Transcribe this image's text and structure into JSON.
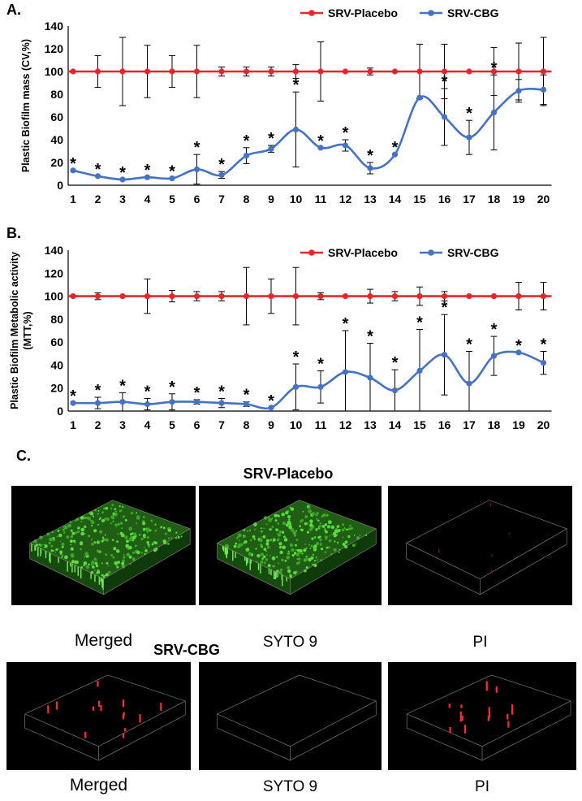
{
  "charts": {
    "A": {
      "panel_letter": "A.",
      "xlabel": "Time (days)",
      "ylabel": "Plastic Biofilm mass (CV,%)",
      "ylabel_lines": [
        "Plastic Biofilm mass (CV,%)"
      ]
    },
    "B": {
      "panel_letter": "B.",
      "xlabel": "Time (days)",
      "ylabel": "Plastic Biofilm Metabolic activity (MTT,%)",
      "ylabel_lines": [
        "Plastic Biofilm Metabolic activity",
        "(MTT,%)"
      ]
    }
  },
  "chart_data": [
    {
      "type": "line",
      "title": "",
      "xlabel": "Time (days)",
      "ylabel": "Plastic Biofilm mass (CV,%)",
      "x": [
        1,
        2,
        3,
        4,
        5,
        6,
        7,
        8,
        9,
        10,
        11,
        12,
        13,
        14,
        15,
        16,
        17,
        18,
        19,
        20
      ],
      "ylim": [
        0,
        140
      ],
      "yticks": [
        0,
        20,
        40,
        60,
        80,
        100,
        120,
        140
      ],
      "grid": false,
      "legend_position": "top",
      "series": [
        {
          "name": "SRV-Placebo",
          "color": "#e8262a",
          "values": [
            100,
            100,
            100,
            100,
            100,
            100,
            100,
            100,
            100,
            100,
            100,
            100,
            100,
            100,
            100,
            100,
            100,
            100,
            100,
            100
          ],
          "error": [
            0,
            14,
            30,
            23,
            14,
            23,
            4,
            4,
            4,
            6,
            26,
            0,
            3,
            0,
            24,
            24,
            0,
            21,
            25,
            30
          ]
        },
        {
          "name": "SRV-CBG",
          "color": "#4472c4",
          "values": [
            13,
            8,
            5,
            7,
            6,
            14,
            9,
            26,
            32,
            49,
            33,
            35,
            15,
            27,
            77,
            60,
            42,
            64,
            83,
            84
          ],
          "error": [
            0,
            0,
            0,
            0,
            0,
            13,
            3,
            7,
            3,
            33,
            0,
            5,
            5,
            0,
            0,
            25,
            15,
            33,
            10,
            13
          ]
        }
      ],
      "significance": [
        "*",
        "*",
        "*",
        "*",
        "*",
        "*",
        "*",
        "*",
        "*",
        "*",
        "*",
        "*",
        "*",
        "*",
        "",
        "*",
        "*",
        "*",
        "",
        ""
      ]
    },
    {
      "type": "line",
      "title": "",
      "xlabel": "Time (days)",
      "ylabel": "Plastic Biofilm Metabolic activity (MTT,%)",
      "x": [
        1,
        2,
        3,
        4,
        5,
        6,
        7,
        8,
        9,
        10,
        11,
        12,
        13,
        14,
        15,
        16,
        17,
        18,
        19,
        20
      ],
      "ylim": [
        0,
        140
      ],
      "yticks": [
        0,
        20,
        40,
        60,
        80,
        100,
        120,
        140
      ],
      "grid": false,
      "legend_position": "top",
      "series": [
        {
          "name": "SRV-Placebo",
          "color": "#e8262a",
          "values": [
            100,
            100,
            100,
            100,
            100,
            100,
            100,
            100,
            100,
            100,
            100,
            100,
            100,
            100,
            100,
            100,
            100,
            100,
            100,
            100
          ],
          "error": [
            0,
            3,
            0,
            15,
            5,
            4,
            4,
            25,
            15,
            25,
            3,
            0,
            6,
            4,
            8,
            4,
            0,
            0,
            12,
            12
          ]
        },
        {
          "name": "SRV-CBG",
          "color": "#4472c4",
          "values": [
            7,
            7,
            8,
            6,
            8,
            8,
            7,
            6,
            3,
            21,
            21,
            34,
            29,
            18,
            35,
            49,
            24,
            48,
            51,
            42
          ],
          "error": [
            0,
            5,
            8,
            5,
            7,
            2,
            4,
            2,
            0,
            20,
            14,
            36,
            30,
            18,
            36,
            35,
            28,
            17,
            0,
            10
          ]
        }
      ],
      "significance": [
        "*",
        "*",
        "*",
        "*",
        "*",
        "*",
        "*",
        "*",
        "*",
        "*",
        "*",
        "*",
        "*",
        "*",
        "*",
        "*",
        "*",
        "*",
        "*",
        "*"
      ]
    }
  ],
  "panel_c": {
    "letter": "C.",
    "groups": [
      {
        "title": "SRV-Placebo",
        "images": [
          {
            "caption": "Merged",
            "stain": "green"
          },
          {
            "caption": "SYTO 9",
            "stain": "green"
          },
          {
            "caption": "PI",
            "stain": "red-faint"
          }
        ]
      },
      {
        "title": "SRV-CBG",
        "images": [
          {
            "caption": "Merged",
            "stain": "red"
          },
          {
            "caption": "SYTO 9",
            "stain": "none"
          },
          {
            "caption": "PI",
            "stain": "red"
          }
        ]
      }
    ]
  }
}
